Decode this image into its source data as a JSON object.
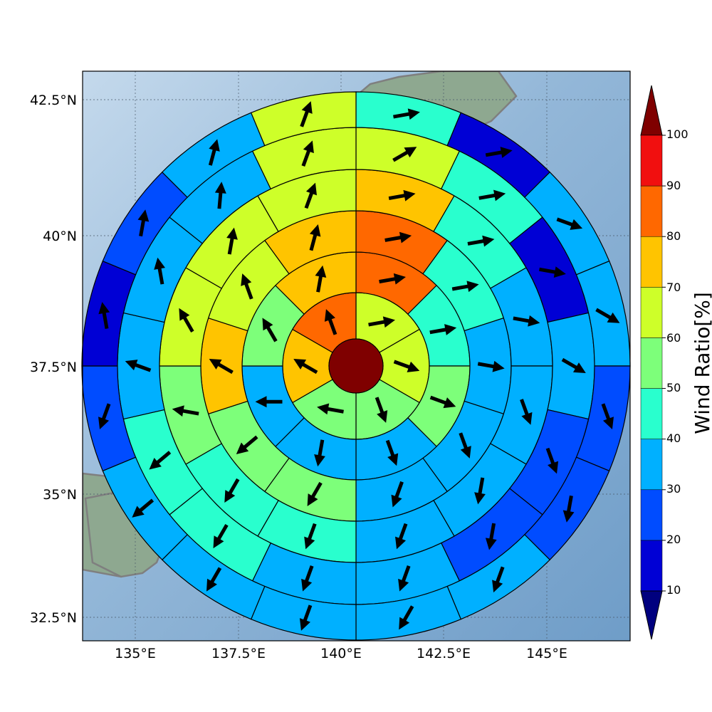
{
  "map": {
    "lat_ticks": [
      "42.5°N",
      "40°N",
      "37.5°N",
      "35°N",
      "32.5°N"
    ],
    "lon_ticks": [
      "135°E",
      "137.5°E",
      "140°E",
      "142.5°E",
      "145°E"
    ],
    "center_value": 100
  },
  "colorbar": {
    "label": "Wind Ratio[%]",
    "ticks": [
      "10",
      "20",
      "30",
      "40",
      "50",
      "60",
      "70",
      "80",
      "90",
      "100"
    ],
    "colors": [
      "#0000d5",
      "#004cff",
      "#00b0ff",
      "#29ffce",
      "#7dff7a",
      "#ceff29",
      "#ffc400",
      "#ff6800",
      "#f10f0f"
    ],
    "under_color": "#00007f",
    "over_color": "#7f0000"
  },
  "chart_data": {
    "type": "heatmap",
    "description_units": "percent",
    "rings": [
      "ring1",
      "ring2",
      "ring3",
      "ring4",
      "ring5",
      "ring6"
    ],
    "sectors_per_ring": [
      6,
      8,
      10,
      12,
      14,
      16
    ],
    "values": [
      [
        62,
        62,
        52,
        52,
        72,
        85
      ],
      [
        82,
        44,
        52,
        38,
        32,
        32,
        56,
        72
      ],
      [
        82,
        44,
        38,
        38,
        35,
        52,
        58,
        72,
        62,
        72
      ],
      [
        78,
        44,
        35,
        35,
        35,
        38,
        42,
        44,
        52,
        62,
        62,
        65
      ],
      [
        66,
        48,
        15,
        35,
        25,
        25,
        32,
        35,
        42,
        42,
        38,
        35,
        35,
        62
      ],
      [
        45,
        15,
        35,
        35,
        25,
        20,
        32,
        32,
        32,
        35,
        35,
        25,
        15,
        20,
        32,
        60
      ]
    ],
    "arrow_directions_deg": [
      [
        80,
        110,
        160,
        280,
        300,
        340
      ],
      [
        80,
        80,
        110,
        160,
        190,
        270,
        330,
        10
      ],
      [
        80,
        80,
        100,
        160,
        200,
        210,
        230,
        300,
        340,
        15
      ],
      [
        80,
        80,
        100,
        160,
        190,
        200,
        200,
        210,
        280,
        330,
        10,
        20
      ],
      [
        60,
        80,
        100,
        120,
        160,
        190,
        200,
        200,
        210,
        230,
        290,
        350,
        5,
        20
      ],
      [
        80,
        80,
        110,
        120,
        160,
        190,
        200,
        210,
        200,
        210,
        230,
        200,
        350,
        10,
        15,
        20
      ]
    ]
  }
}
